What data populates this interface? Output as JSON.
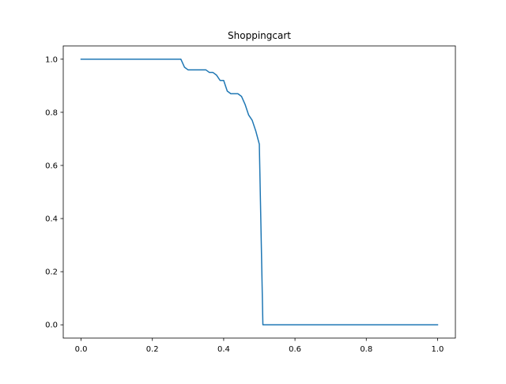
{
  "chart_data": {
    "type": "line",
    "title": "Shoppingcart",
    "xlabel": "",
    "ylabel": "",
    "xlim": [
      -0.05,
      1.05
    ],
    "ylim": [
      -0.05,
      1.05
    ],
    "xticks": [
      0.0,
      0.2,
      0.4,
      0.6,
      0.8,
      1.0
    ],
    "xtick_labels": [
      "0.0",
      "0.2",
      "0.4",
      "0.6",
      "0.8",
      "1.0"
    ],
    "yticks": [
      0.0,
      0.2,
      0.4,
      0.6,
      0.8,
      1.0
    ],
    "ytick_labels": [
      "0.0",
      "0.2",
      "0.4",
      "0.6",
      "0.8",
      "1.0"
    ],
    "grid": false,
    "legend": "none",
    "series": [
      {
        "color": "#1f77b4",
        "x": [
          0.0,
          0.28,
          0.29,
          0.3,
          0.32,
          0.35,
          0.36,
          0.37,
          0.38,
          0.39,
          0.4,
          0.41,
          0.42,
          0.44,
          0.45,
          0.46,
          0.47,
          0.48,
          0.49,
          0.5,
          0.51,
          0.52,
          1.0
        ],
        "y": [
          1.0,
          1.0,
          0.97,
          0.96,
          0.96,
          0.96,
          0.95,
          0.95,
          0.94,
          0.92,
          0.92,
          0.88,
          0.87,
          0.87,
          0.86,
          0.83,
          0.79,
          0.77,
          0.73,
          0.68,
          0.0,
          0.0,
          0.0
        ]
      }
    ]
  }
}
